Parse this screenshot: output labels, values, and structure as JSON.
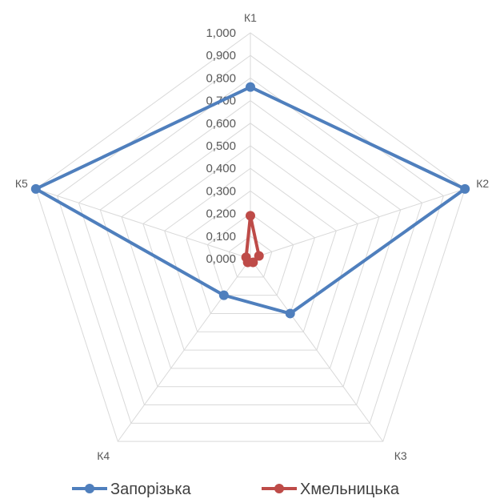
{
  "chart_data": {
    "type": "radar",
    "categories": [
      "К1",
      "К2",
      "К3",
      "К4",
      "К5"
    ],
    "r_range": [
      0,
      1
    ],
    "r_ticks": [
      "0,000",
      "0,100",
      "0,200",
      "0,300",
      "0,400",
      "0,500",
      "0,600",
      "0,700",
      "0,800",
      "0,900",
      "1,000"
    ],
    "grid": true,
    "legend_position": "bottom",
    "series": [
      {
        "name": "Запорізька",
        "color": "#4f7fbd",
        "values": [
          0.76,
          1.0,
          0.3,
          0.2,
          1.0
        ]
      },
      {
        "name": "Хмельницька",
        "color": "#be4b48",
        "values": [
          0.19,
          0.04,
          0.02,
          0.02,
          0.02
        ]
      }
    ]
  }
}
